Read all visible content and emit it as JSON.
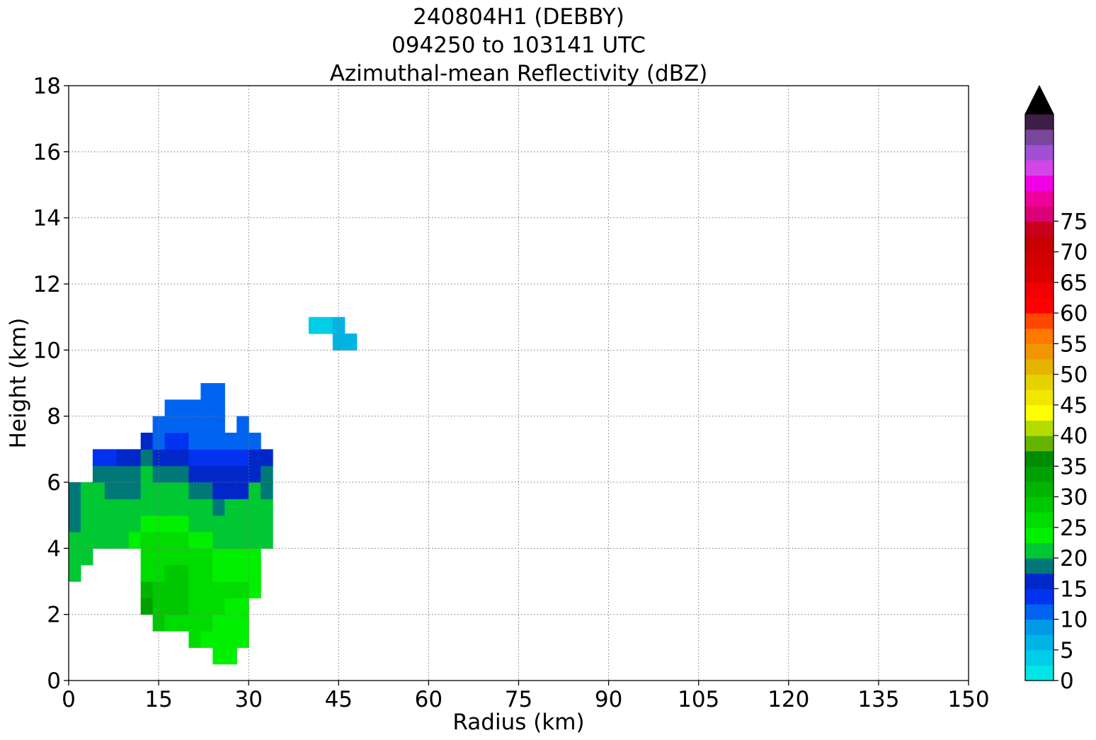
{
  "title_lines": [
    "240804H1 (DEBBY)",
    "094250 to 103141 UTC",
    "Azimuthal-mean Reflectivity (dBZ)"
  ],
  "chart_data": {
    "type": "heatmap",
    "title": "240804H1 (DEBBY)\n094250 to 103141 UTC\nAzimuthal-mean Reflectivity (dBZ)",
    "xlabel": "Radius (km)",
    "ylabel": "Height (km)",
    "xlim": [
      0,
      150
    ],
    "ylim": [
      0,
      18
    ],
    "xticks": [
      0,
      15,
      30,
      45,
      60,
      75,
      90,
      105,
      120,
      135,
      150
    ],
    "yticks": [
      0,
      2,
      4,
      6,
      8,
      10,
      12,
      14,
      16,
      18
    ],
    "grid": true,
    "grid_spacing_km": {
      "x": 2,
      "y": 0.5
    },
    "colorbar": {
      "label": "",
      "levels": [
        0,
        2.5,
        5,
        7.5,
        10,
        12.5,
        15,
        17.5,
        20,
        22.5,
        25,
        27.5,
        30,
        32.5,
        35,
        37.5,
        40,
        42.5,
        45,
        47.5,
        50,
        52.5,
        55,
        57.5,
        60,
        62.5,
        65,
        67.5,
        70,
        72.5,
        75,
        77.5,
        80
      ],
      "ticks": [
        0,
        5,
        10,
        15,
        20,
        25,
        30,
        35,
        40,
        45,
        50,
        55,
        60,
        65,
        70,
        75
      ],
      "colors": [
        "#00e6e6",
        "#00cde6",
        "#00b4e6",
        "#009be6",
        "#0064f0",
        "#0032f0",
        "#0028c8",
        "#007878",
        "#00c832",
        "#00f000",
        "#00dc00",
        "#00c800",
        "#00b400",
        "#00a000",
        "#008c00",
        "#64b400",
        "#b4dc00",
        "#ffff00",
        "#f0e600",
        "#e6d200",
        "#e6b400",
        "#f09600",
        "#ff7800",
        "#ff4600",
        "#ff0000",
        "#f00000",
        "#dc0000",
        "#d20000",
        "#c80000",
        "#c8001e",
        "#dc0078",
        "#f0009b"
      ],
      "extend_top_colors": [
        "#f000e6",
        "#d246e6",
        "#a050d2",
        "#78469b",
        "#3c1e46",
        "#000000"
      ],
      "extend": "max"
    },
    "data_levels_note": "",
    "cells": [
      {
        "r": 0,
        "z": [
          3.0,
          5.5
        ],
        "dbz": [
          22,
          21,
          20,
          19,
          19,
          18
        ]
      },
      {
        "r": 2,
        "z": [
          3.5,
          5.5
        ],
        "dbz": [
          22,
          21,
          20,
          20,
          20
        ]
      },
      {
        "r": 4,
        "z": [
          4.0,
          6.5
        ],
        "dbz": [
          21,
          21,
          20,
          20,
          18,
          13
        ]
      },
      {
        "r": 6,
        "z": [
          4.0,
          6.5
        ],
        "dbz": [
          21,
          20,
          20,
          19,
          18,
          13
        ]
      },
      {
        "r": 8,
        "z": [
          4.0,
          6.5
        ],
        "dbz": [
          21,
          21,
          20,
          19,
          18,
          16
        ]
      },
      {
        "r": 10,
        "z": [
          4.0,
          6.5
        ],
        "dbz": [
          23,
          21,
          20,
          19,
          18,
          16
        ]
      },
      {
        "r": 12,
        "z": [
          2.0,
          7.5
        ],
        "dbz": [
          33,
          30,
          27,
          26,
          25,
          24,
          22,
          21,
          20,
          19,
          16
        ]
      },
      {
        "r": 14,
        "z": [
          1.5,
          8.0
        ],
        "dbz": [
          29,
          29,
          28,
          27,
          26,
          25,
          23,
          22,
          20,
          19,
          15,
          11,
          11
        ]
      },
      {
        "r": 16,
        "z": [
          1.5,
          8.5
        ],
        "dbz": [
          27,
          28,
          29,
          28,
          27,
          26,
          23,
          22,
          20,
          19,
          15,
          13,
          11,
          11
        ]
      },
      {
        "r": 18,
        "z": [
          1.5,
          8.5
        ],
        "dbz": [
          26,
          28,
          29,
          28,
          27,
          26,
          23,
          22,
          20,
          19,
          15,
          13,
          11,
          11
        ]
      },
      {
        "r": 20,
        "z": [
          1.0,
          8.5
        ],
        "dbz": [
          25,
          26,
          27,
          27,
          27,
          26,
          24,
          22,
          20,
          19,
          15,
          14,
          11,
          11,
          11
        ]
      },
      {
        "r": 22,
        "z": [
          1.0,
          9.0
        ],
        "dbz": [
          24,
          25,
          26,
          26,
          26,
          25,
          23,
          22,
          21,
          19,
          16,
          14,
          12,
          11,
          11,
          11
        ]
      },
      {
        "r": 24,
        "z": [
          0.5,
          9.0
        ],
        "dbz": [
          23,
          24,
          24,
          25,
          25,
          24,
          23,
          22,
          21,
          19,
          17,
          15,
          14,
          11,
          11,
          11,
          11
        ]
      },
      {
        "r": 26,
        "z": [
          0.5,
          7.5
        ],
        "dbz": [
          23,
          23,
          24,
          24,
          25,
          24,
          23,
          22,
          21,
          20,
          17,
          15,
          14,
          12
        ]
      },
      {
        "r": 28,
        "z": [
          1.0,
          7.5
        ],
        "dbz": [
          23,
          23,
          24,
          25,
          24,
          23,
          22,
          21,
          20,
          17,
          15,
          14,
          12,
          12
        ]
      },
      {
        "r": 30,
        "z": [
          2.5,
          7.5
        ],
        "dbz": [
          24,
          24,
          23,
          22,
          22,
          21,
          20,
          17,
          15,
          12
        ]
      },
      {
        "r": 32,
        "z": [
          4.0,
          6.5
        ],
        "dbz": [
          21,
          21,
          20,
          19,
          18,
          16
        ]
      },
      {
        "r": 40,
        "z": [
          10.5,
          11.0
        ],
        "dbz": [
          4
        ]
      },
      {
        "r": 42,
        "z": [
          10.5,
          11.0
        ],
        "dbz": [
          4
        ]
      },
      {
        "r": 44,
        "z": [
          10.0,
          11.0
        ],
        "dbz": [
          6,
          5
        ]
      },
      {
        "r": 46,
        "z": [
          10.0,
          10.5
        ],
        "dbz": [
          7
        ]
      }
    ]
  }
}
